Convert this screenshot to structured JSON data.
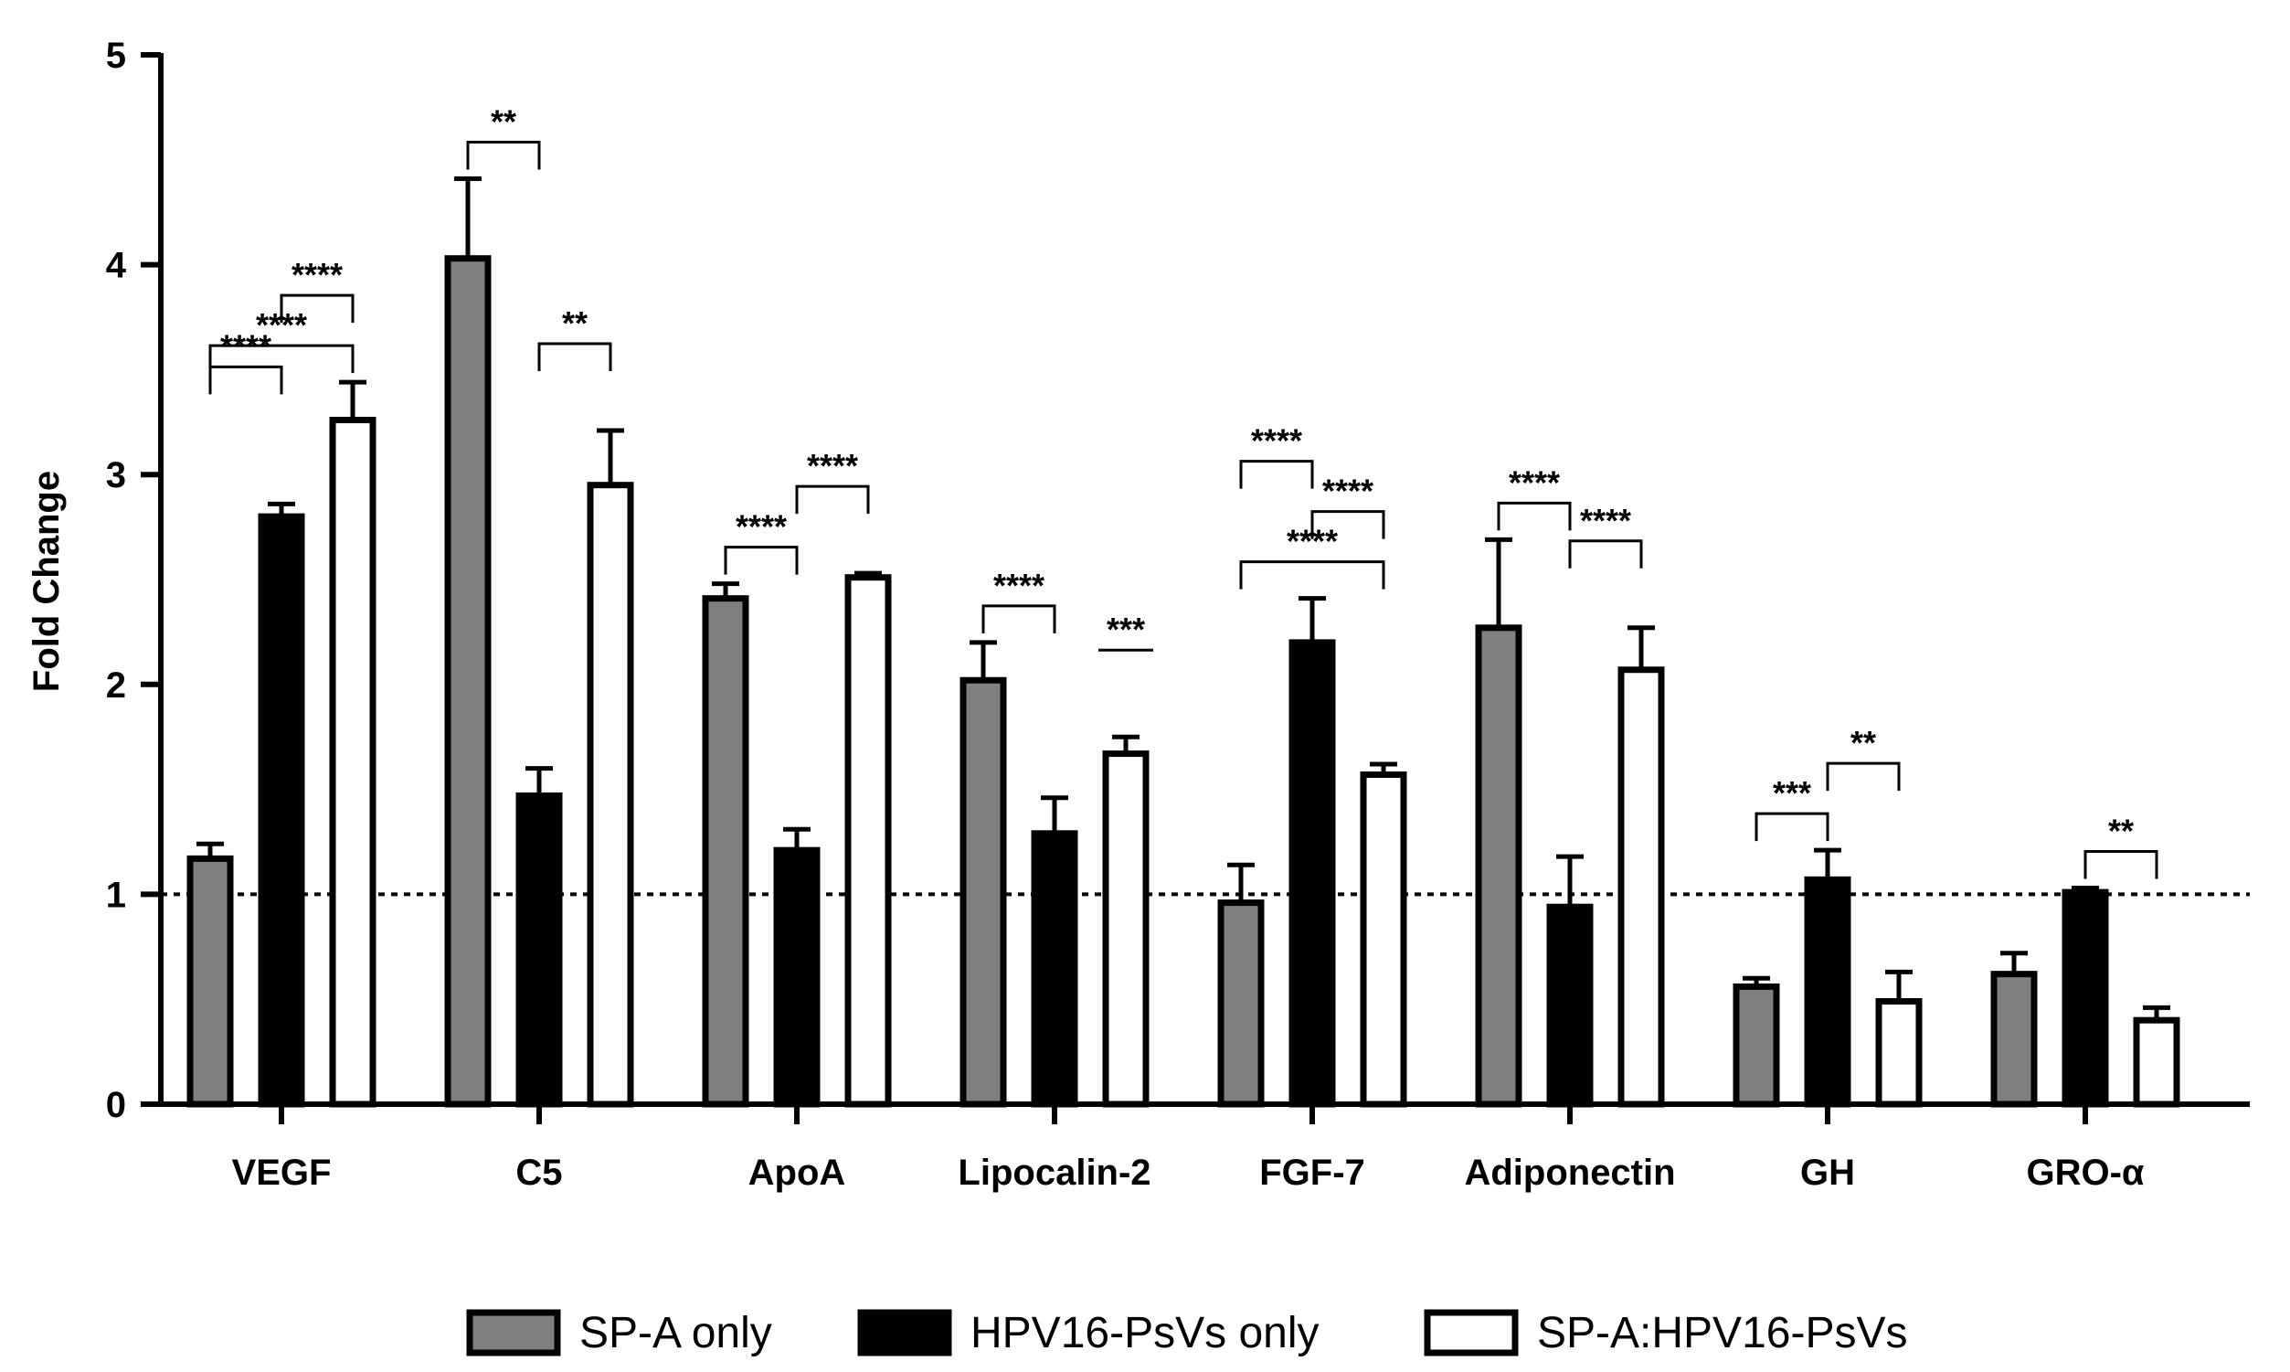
{
  "chart_data": {
    "type": "bar",
    "title": "",
    "xlabel": "",
    "ylabel": "Fold Change",
    "ylim": [
      0,
      5
    ],
    "yticks": [
      0,
      1,
      2,
      3,
      4,
      5
    ],
    "reference_line": 1,
    "categories": [
      "VEGF",
      "C5",
      "ApoA",
      "Lipocalin-2",
      "FGF-7",
      "Adiponectin",
      "GH",
      "GRO-α"
    ],
    "series": [
      {
        "name": "SP-A only",
        "color": "#808080",
        "values": [
          1.17,
          4.03,
          2.41,
          2.02,
          0.96,
          2.27,
          0.56,
          0.62
        ],
        "errors": [
          0.07,
          0.38,
          0.07,
          0.18,
          0.18,
          0.42,
          0.04,
          0.1
        ]
      },
      {
        "name": "HPV16-PsVs only",
        "color": "#000000",
        "values": [
          2.8,
          1.47,
          1.21,
          1.29,
          2.2,
          0.94,
          1.07,
          1.01
        ],
        "errors": [
          0.06,
          0.13,
          0.1,
          0.17,
          0.21,
          0.24,
          0.14,
          0.02
        ]
      },
      {
        "name": "SP-A:HPV16-PsVs",
        "color": "#ffffff",
        "values": [
          3.26,
          2.95,
          2.51,
          1.67,
          1.57,
          2.07,
          0.49,
          0.4
        ],
        "errors": [
          0.18,
          0.26,
          0.02,
          0.08,
          0.05,
          0.2,
          0.14,
          0.06
        ]
      }
    ],
    "significance": [
      {
        "category": "VEGF",
        "from": 0,
        "to": 2,
        "label": "****"
      },
      {
        "category": "VEGF",
        "from": 1,
        "to": 2,
        "label": "****"
      },
      {
        "category": "VEGF",
        "from": 0,
        "to": 1,
        "label": "****"
      },
      {
        "category": "C5",
        "from": 0,
        "to": 1,
        "label": "**"
      },
      {
        "category": "C5",
        "from": 1,
        "to": 2,
        "label": "**"
      },
      {
        "category": "ApoA",
        "from": 0,
        "to": 1,
        "label": "****"
      },
      {
        "category": "ApoA",
        "from": 1,
        "to": 2,
        "label": "****"
      },
      {
        "category": "Lipocalin-2",
        "from": 0,
        "to": 1,
        "label": "****"
      },
      {
        "category": "Lipocalin-2",
        "from": 2,
        "to": 2,
        "label": "***"
      },
      {
        "category": "FGF-7",
        "from": 0,
        "to": 2,
        "label": "****"
      },
      {
        "category": "FGF-7",
        "from": 1,
        "to": 2,
        "label": "****"
      },
      {
        "category": "FGF-7",
        "from": 0,
        "to": 1,
        "label": "****"
      },
      {
        "category": "Adiponectin",
        "from": 0,
        "to": 1,
        "label": "****"
      },
      {
        "category": "Adiponectin",
        "from": 1,
        "to": 2,
        "label": "****"
      },
      {
        "category": "GH",
        "from": 0,
        "to": 1,
        "label": "***"
      },
      {
        "category": "GH",
        "from": 1,
        "to": 2,
        "label": "**"
      },
      {
        "category": "GRO-α",
        "from": 1,
        "to": 2,
        "label": "**"
      }
    ],
    "legend": {
      "position": "bottom",
      "entries": [
        "SP-A only",
        "HPV16-PsVs only",
        "SP-A:HPV16-PsVs"
      ]
    }
  }
}
